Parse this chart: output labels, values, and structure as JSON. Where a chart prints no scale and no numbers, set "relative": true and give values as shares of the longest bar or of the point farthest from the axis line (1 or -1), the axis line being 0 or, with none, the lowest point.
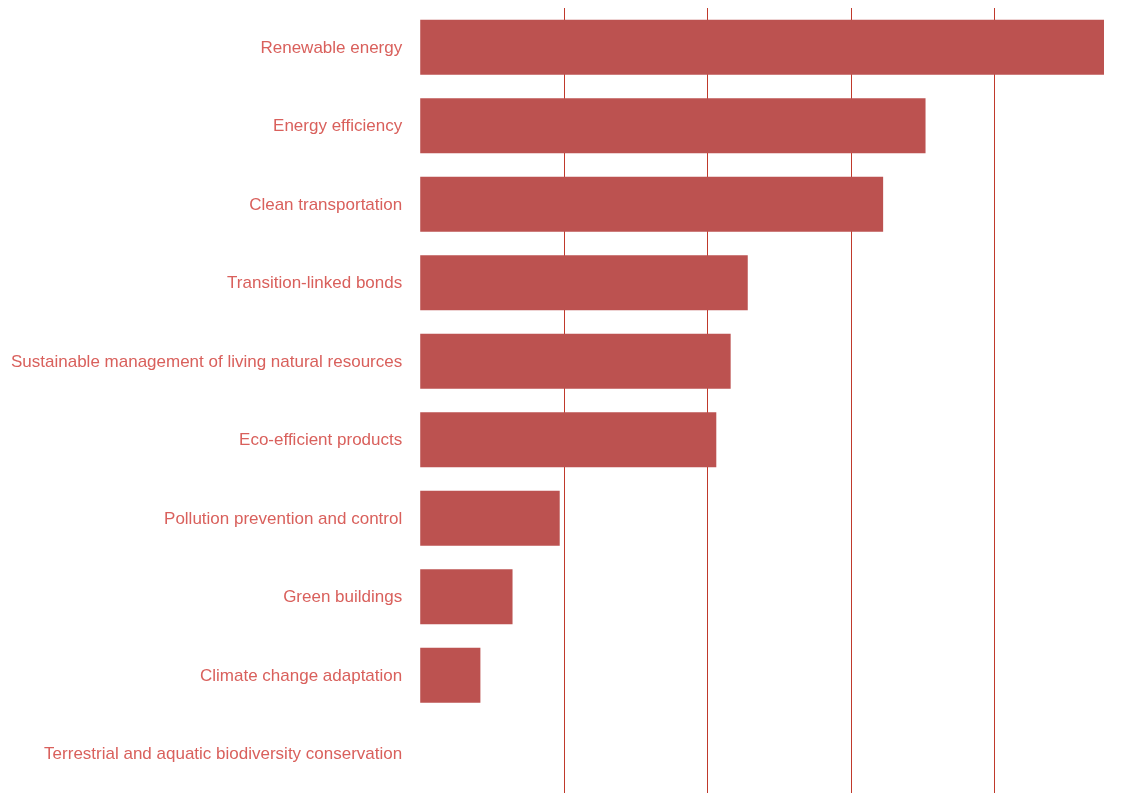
{
  "chart_data": {
    "type": "bar",
    "orientation": "horizontal",
    "relative": true,
    "color": "#bc5250",
    "categories": [
      "Renewable energy",
      "Energy efficiency",
      "Clean transportation",
      "Transition-linked bonds",
      "Sustainable management of living natural resources",
      "Eco-efficient products",
      "Pollution prevention and control",
      "Green buildings",
      "Climate change adaptation",
      "Terrestrial and aquatic biodiversity conservation"
    ],
    "values": [
      1,
      0.739,
      0.677,
      0.479,
      0.454,
      0.433,
      0.204,
      0.135,
      0.088,
      0
    ],
    "ref_lines": [
      {
        "axis": "x",
        "value": 0.21,
        "color": "#c0392b"
      },
      {
        "axis": "x",
        "value": 0.422,
        "color": "#c0392b"
      },
      {
        "axis": "x",
        "value": 0.629,
        "color": "#c0392b"
      },
      {
        "axis": "x",
        "value": 0.84,
        "color": "#c0392b"
      }
    ]
  }
}
